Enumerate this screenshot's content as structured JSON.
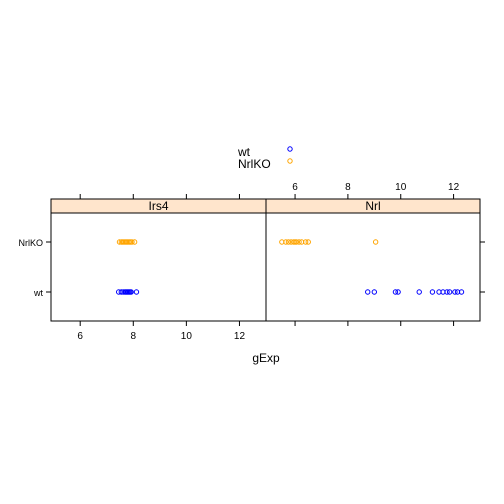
{
  "chart_data": {
    "type": "scatter",
    "xlabel": "gExp",
    "ylabel": "",
    "xlim": [
      4.9,
      13.0
    ],
    "x_ticks": [
      6,
      8,
      10,
      12
    ],
    "categories": [
      "wt",
      "NrlKO"
    ],
    "legend": {
      "placement": "top",
      "entries": [
        {
          "label": "wt",
          "color": "#0000ff"
        },
        {
          "label": "NrlKO",
          "color": "#ffa500"
        }
      ]
    },
    "strip_color": "#ffe5cc",
    "panels": [
      {
        "name": "Irs4",
        "series": [
          {
            "name": "wt",
            "color": "#0000ff",
            "values": [
              7.45,
              7.55,
              7.62,
              7.68,
              7.72,
              7.76,
              7.8,
              7.84,
              7.88,
              7.92,
              8.12
            ]
          },
          {
            "name": "NrlKO",
            "color": "#ffa500",
            "values": [
              7.48,
              7.55,
              7.6,
              7.65,
              7.7,
              7.75,
              7.8,
              7.85,
              7.9,
              7.95,
              8.05
            ]
          }
        ]
      },
      {
        "name": "Nrl",
        "series": [
          {
            "name": "wt",
            "color": "#0000ff",
            "values": [
              8.75,
              9.0,
              9.8,
              9.9,
              10.7,
              11.2,
              11.45,
              11.6,
              11.75,
              11.85,
              12.05,
              12.15,
              12.3
            ]
          },
          {
            "name": "NrlKO",
            "color": "#ffa500",
            "values": [
              5.5,
              5.65,
              5.75,
              5.85,
              5.95,
              6.0,
              6.05,
              6.15,
              6.25,
              6.4,
              6.5,
              9.05
            ]
          }
        ]
      }
    ]
  }
}
